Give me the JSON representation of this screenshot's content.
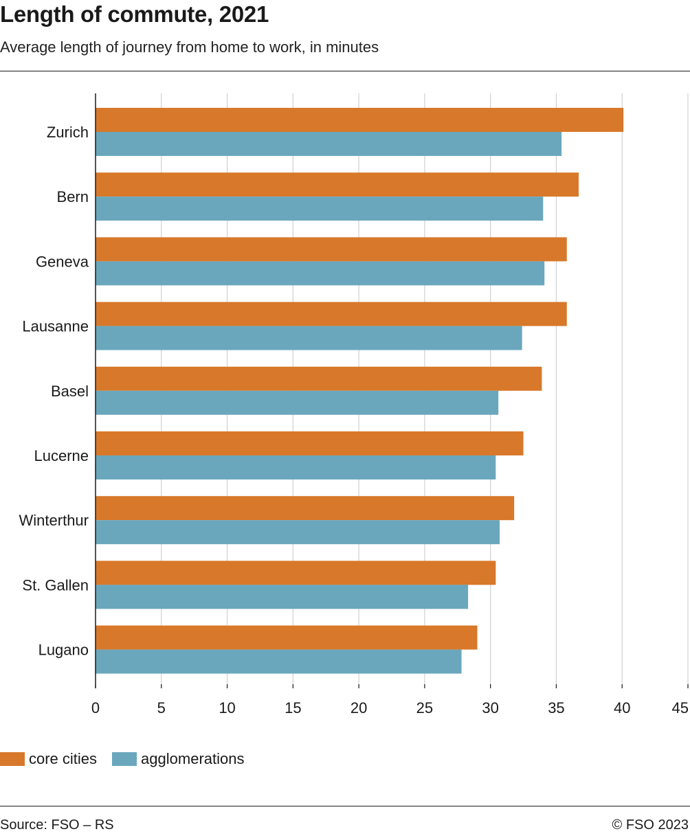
{
  "title": "Length of commute, 2021",
  "subtitle": "Average length of journey from home to work, in minutes",
  "legend": {
    "core": "core cities",
    "agglo": "agglomerations"
  },
  "footer": {
    "source": "Source: FSO – RS",
    "copyright": "© FSO 2023"
  },
  "colors": {
    "core": "#d8782a",
    "agglo": "#6aa7bd",
    "grid": "#d0d0d0",
    "axis": "#1a1a1a"
  },
  "chart_data": {
    "type": "bar",
    "orientation": "horizontal",
    "title": "Length of commute, 2021",
    "subtitle": "Average length of journey from home to work, in minutes",
    "categories": [
      "Zurich",
      "Bern",
      "Geneva",
      "Lausanne",
      "Basel",
      "Lucerne",
      "Winterthur",
      "St. Gallen",
      "Lugano"
    ],
    "series": [
      {
        "name": "core cities",
        "values": [
          40.1,
          36.7,
          35.8,
          35.8,
          33.9,
          32.5,
          31.8,
          30.4,
          29.0
        ]
      },
      {
        "name": "agglomerations",
        "values": [
          35.4,
          34.0,
          34.1,
          32.4,
          30.6,
          30.4,
          30.7,
          28.3,
          27.8
        ]
      }
    ],
    "xlim": [
      0,
      45
    ],
    "xticks": [
      "0",
      "5",
      "10",
      "15",
      "20",
      "25",
      "30",
      "35",
      "40",
      "45"
    ],
    "xlabel": "",
    "ylabel": "",
    "grid": "vertical",
    "legend_position": "bottom-left"
  }
}
